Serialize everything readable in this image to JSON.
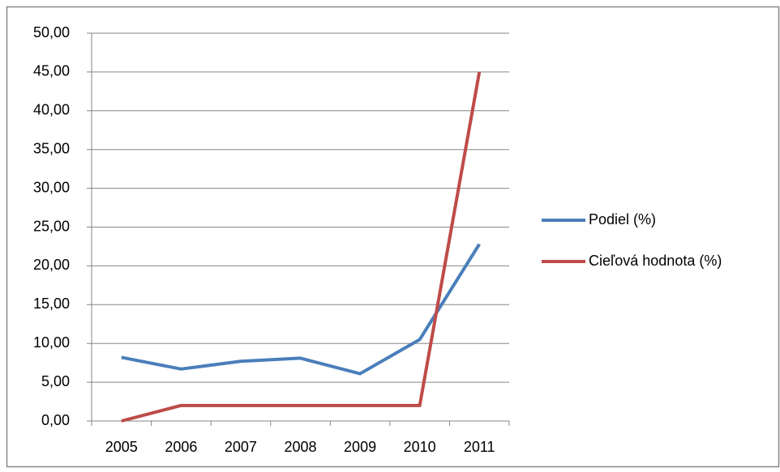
{
  "chart_data": {
    "type": "line",
    "categories": [
      "2005",
      "2006",
      "2007",
      "2008",
      "2009",
      "2010",
      "2011"
    ],
    "series": [
      {
        "name": "Podiel (%)",
        "color": "#4a7ebb",
        "values": [
          8.2,
          6.7,
          7.7,
          8.1,
          6.1,
          10.5,
          22.8
        ]
      },
      {
        "name": "Cieľová hodnota (%)",
        "color": "#be4b48",
        "values": [
          0,
          2,
          2,
          2,
          2,
          2,
          45
        ]
      }
    ],
    "ylim": [
      0,
      50
    ],
    "yticks": [
      {
        "value": 0,
        "label": "0,00"
      },
      {
        "value": 5,
        "label": "5,00"
      },
      {
        "value": 10,
        "label": "10,00"
      },
      {
        "value": 15,
        "label": "15,00"
      },
      {
        "value": 20,
        "label": "20,00"
      },
      {
        "value": 25,
        "label": "25,00"
      },
      {
        "value": 30,
        "label": "30,00"
      },
      {
        "value": 35,
        "label": "35,00"
      },
      {
        "value": 40,
        "label": "40,00"
      },
      {
        "value": 45,
        "label": "45,00"
      },
      {
        "value": 50,
        "label": "50,00"
      }
    ],
    "grid": true,
    "legend": "right"
  }
}
